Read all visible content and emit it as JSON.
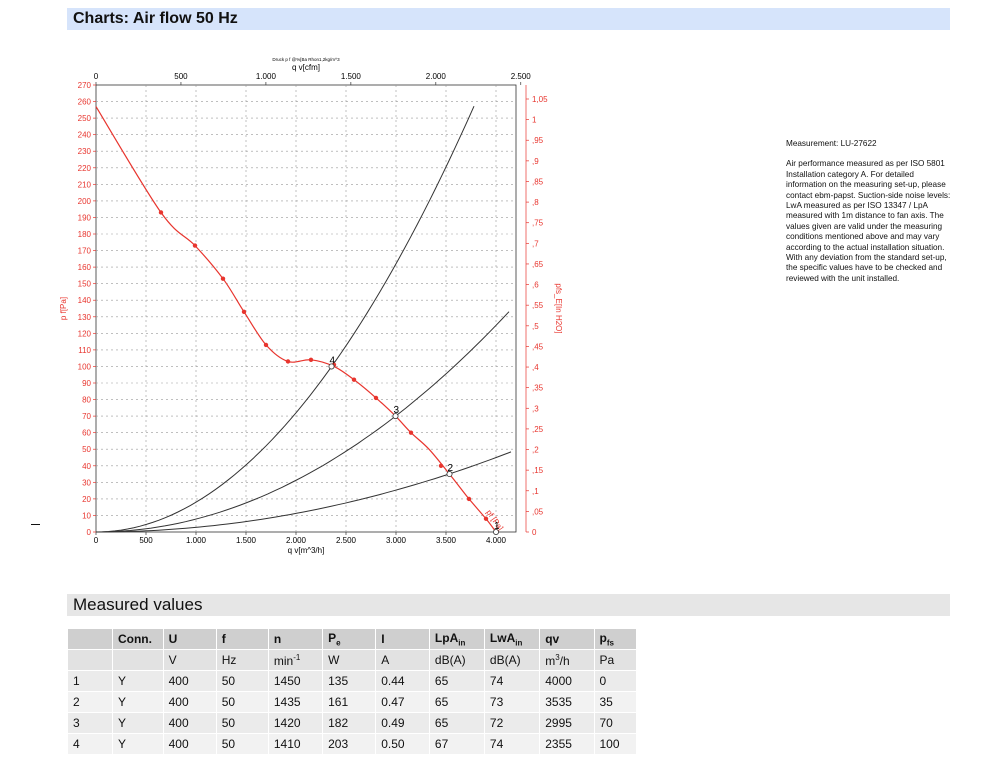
{
  "sections": {
    "charts_title": "Charts: Air flow 50 Hz",
    "measured_title": "Measured values"
  },
  "description": {
    "measurement": "Measurement: LU-27622",
    "text": "Air performance measured as per ISO 5801 Installation category A. For detailed information on the measuring set-up, please contact ebm-papst. Suction-side noise levels: LwA measured as per ISO 13347 / LpA measured with 1m distance to fan axis. The values given are valid under the measuring conditions mentioned above and may vary according to the actual installation situation. With any deviation from the standard set-up, the specific values have to be checked and reviewed with the unit installed."
  },
  "chart_data": {
    "type": "line",
    "subtitle": "Druck p f @%[Ba Rhon1,2kg/m^3",
    "x_bottom": {
      "label": "q v[m^3/h]",
      "range": [
        0,
        4200
      ],
      "ticks": [
        0,
        500,
        1000,
        1500,
        2000,
        2500,
        3000,
        3500,
        4000
      ],
      "tick_labels": [
        "0",
        "500",
        "1.000",
        "1.500",
        "2.000",
        "2.500",
        "3.000",
        "3.500",
        "4.000"
      ]
    },
    "x_top": {
      "label": "q v[cfm]",
      "range": [
        0,
        2472
      ],
      "ticks": [
        0,
        500,
        1000,
        1500,
        2000,
        2500
      ],
      "tick_labels": [
        "0",
        "500",
        "1.000",
        "1.500",
        "2.000",
        "2.500"
      ]
    },
    "y_left": {
      "label": "p f[Pa]",
      "range": [
        0,
        270
      ],
      "ticks": [
        0,
        10,
        20,
        30,
        40,
        50,
        60,
        70,
        80,
        90,
        100,
        110,
        120,
        130,
        140,
        150,
        160,
        170,
        180,
        190,
        200,
        210,
        220,
        230,
        240,
        250,
        260,
        270
      ]
    },
    "y_right": {
      "label": "pfs_E[In H2O]",
      "range": [
        0,
        1.084
      ],
      "ticks": [
        0,
        0.05,
        0.1,
        0.15,
        0.2,
        0.25,
        0.3,
        0.35,
        0.4,
        0.45,
        0.5,
        0.55,
        0.6,
        0.65,
        0.7,
        0.75,
        0.8,
        0.85,
        0.9,
        0.95,
        1,
        1.05
      ],
      "tick_labels": [
        "0",
        ",05",
        ",1",
        ",15",
        ",2",
        ",25",
        ",3",
        ",35",
        ",4",
        ",45",
        ",5",
        ",55",
        ",6",
        ",65",
        ",7",
        ",75",
        ",8",
        ",85",
        ",9",
        ",95",
        "1",
        "1,05"
      ]
    },
    "grid": true,
    "fan_curve": {
      "label": "pf [Pa]",
      "x": [
        0,
        650,
        990,
        1270,
        1480,
        1700,
        1920,
        2150,
        2380,
        2580,
        2800,
        2995,
        3150,
        3330,
        3535,
        3730,
        3900,
        4000
      ],
      "y": [
        257,
        193,
        173,
        153,
        133,
        113,
        103,
        104,
        100,
        92,
        81,
        70,
        60,
        50,
        35,
        20,
        8,
        0
      ],
      "markers_x": [
        650,
        990,
        1270,
        1480,
        1700,
        1920,
        2150,
        2380,
        2580,
        2800,
        3150,
        3450,
        3730,
        3900
      ],
      "markers_y": [
        193,
        173,
        153,
        133,
        113,
        103,
        104,
        101,
        92,
        81,
        60,
        40,
        20,
        8
      ]
    },
    "system_curves": [
      {
        "x": [
          0,
          4000
        ],
        "y": [
          0,
          0
        ],
        "k": 0,
        "x_end": 4150
      },
      {
        "k": 2.81e-06,
        "x_end": 4150
      },
      {
        "k": 7.8e-06,
        "x_end": 4130
      },
      {
        "k": 1.8e-05,
        "x_end": 3780
      }
    ],
    "operating_points": [
      {
        "label": "1",
        "x": 4000,
        "y": 0
      },
      {
        "label": "2",
        "x": 3535,
        "y": 35
      },
      {
        "label": "3",
        "x": 2995,
        "y": 70
      },
      {
        "label": "4",
        "x": 2355,
        "y": 100
      }
    ]
  },
  "table": {
    "headers": [
      "",
      "Conn.",
      "U",
      "f",
      "n",
      "P_e",
      "I",
      "LpA_in",
      "LwA_in",
      "qv",
      "p_fs"
    ],
    "units": [
      "",
      "",
      "V",
      "Hz",
      "min-1",
      "W",
      "A",
      "dB(A)",
      "dB(A)",
      "m3/h",
      "Pa"
    ],
    "rows": [
      [
        "1",
        "Y",
        "400",
        "50",
        "1450",
        "135",
        "0.44",
        "65",
        "74",
        "4000",
        "0"
      ],
      [
        "2",
        "Y",
        "400",
        "50",
        "1435",
        "161",
        "0.47",
        "65",
        "73",
        "3535",
        "35"
      ],
      [
        "3",
        "Y",
        "400",
        "50",
        "1420",
        "182",
        "0.49",
        "65",
        "72",
        "2995",
        "70"
      ],
      [
        "4",
        "Y",
        "400",
        "50",
        "1410",
        "203",
        "0.50",
        "67",
        "74",
        "2355",
        "100"
      ]
    ]
  },
  "colors": {
    "fan_curve": "#e8352e",
    "axis_left": "#e8352e",
    "header_bg": "#d6e4fb",
    "grid": "#999999"
  }
}
